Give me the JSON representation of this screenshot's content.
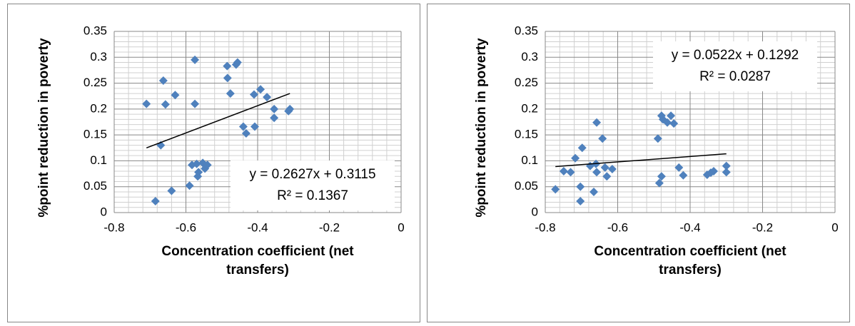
{
  "chart_data": [
    {
      "type": "scatter",
      "color": "#4f81bd",
      "x_label": "Concentration coefficient (net transfers)",
      "y_label": "%point reduction in poverty",
      "x": [
        -0.71,
        -0.663,
        -0.657,
        -0.63,
        -0.575,
        -0.575,
        -0.67,
        -0.685,
        -0.64,
        -0.59,
        -0.583,
        -0.57,
        -0.567,
        -0.565,
        -0.553,
        -0.547,
        -0.54,
        -0.485,
        -0.484,
        -0.476,
        -0.46,
        -0.456,
        -0.44,
        -0.432,
        -0.41,
        -0.408,
        -0.392,
        -0.374,
        -0.354,
        -0.354,
        -0.314,
        -0.31
      ],
      "series": [
        {
          "name": "%point reduction in poverty",
          "color": "#4f81bd",
          "values": [
            0.21,
            0.255,
            0.209,
            0.227,
            0.295,
            0.21,
            0.13,
            0.022,
            0.042,
            0.052,
            0.092,
            0.094,
            0.07,
            0.078,
            0.096,
            0.085,
            0.092,
            0.283,
            0.26,
            0.23,
            0.286,
            0.29,
            0.166,
            0.153,
            0.228,
            0.166,
            0.238,
            0.223,
            0.183,
            0.2,
            0.196,
            0.2
          ]
        }
      ],
      "trendline": {
        "slope": 0.2627,
        "intercept": 0.3115,
        "equation": "y = 0.2627x + 0.3115",
        "r_squared": "R² = 0.1367"
      },
      "xlim": [
        -0.8,
        0
      ],
      "xticks": [
        -0.8,
        -0.6,
        -0.4,
        -0.2,
        0
      ],
      "ylim": [
        0,
        0.35
      ],
      "yticks": [
        0,
        0.05,
        0.1,
        0.15,
        0.2,
        0.25,
        0.3,
        0.35
      ],
      "grid": true,
      "minor_grid": true
    },
    {
      "type": "scatter",
      "color": "#4f81bd",
      "x_label": "Concentration coefficient (net transfers)",
      "y_label": "%point reduction in poverty",
      "x": [
        -0.772,
        -0.749,
        -0.73,
        -0.717,
        -0.698,
        -0.703,
        -0.703,
        -0.676,
        -0.666,
        -0.66,
        -0.658,
        -0.658,
        -0.642,
        -0.635,
        -0.63,
        -0.615,
        -0.489,
        -0.485,
        -0.479,
        -0.479,
        -0.475,
        -0.463,
        -0.453,
        -0.445,
        -0.431,
        -0.419,
        -0.353,
        -0.343,
        -0.335,
        -0.3,
        -0.3
      ],
      "series": [
        {
          "name": "%point reduction in poverty",
          "color": "#4f81bd",
          "values": [
            0.045,
            0.08,
            0.078,
            0.105,
            0.125,
            0.05,
            0.022,
            0.09,
            0.04,
            0.094,
            0.174,
            0.078,
            0.143,
            0.087,
            0.07,
            0.084,
            0.143,
            0.057,
            0.07,
            0.187,
            0.18,
            0.174,
            0.187,
            0.172,
            0.087,
            0.072,
            0.073,
            0.077,
            0.08,
            0.09,
            0.078
          ]
        }
      ],
      "trendline": {
        "slope": 0.0522,
        "intercept": 0.1292,
        "equation": "y = 0.0522x + 0.1292",
        "r_squared": "R² = 0.0287"
      },
      "xlim": [
        -0.8,
        0
      ],
      "xticks": [
        -0.8,
        -0.6,
        -0.4,
        -0.2,
        0
      ],
      "ylim": [
        0,
        0.35
      ],
      "yticks": [
        0,
        0.05,
        0.1,
        0.15,
        0.2,
        0.25,
        0.3,
        0.35
      ],
      "grid": true,
      "minor_grid": true
    }
  ]
}
